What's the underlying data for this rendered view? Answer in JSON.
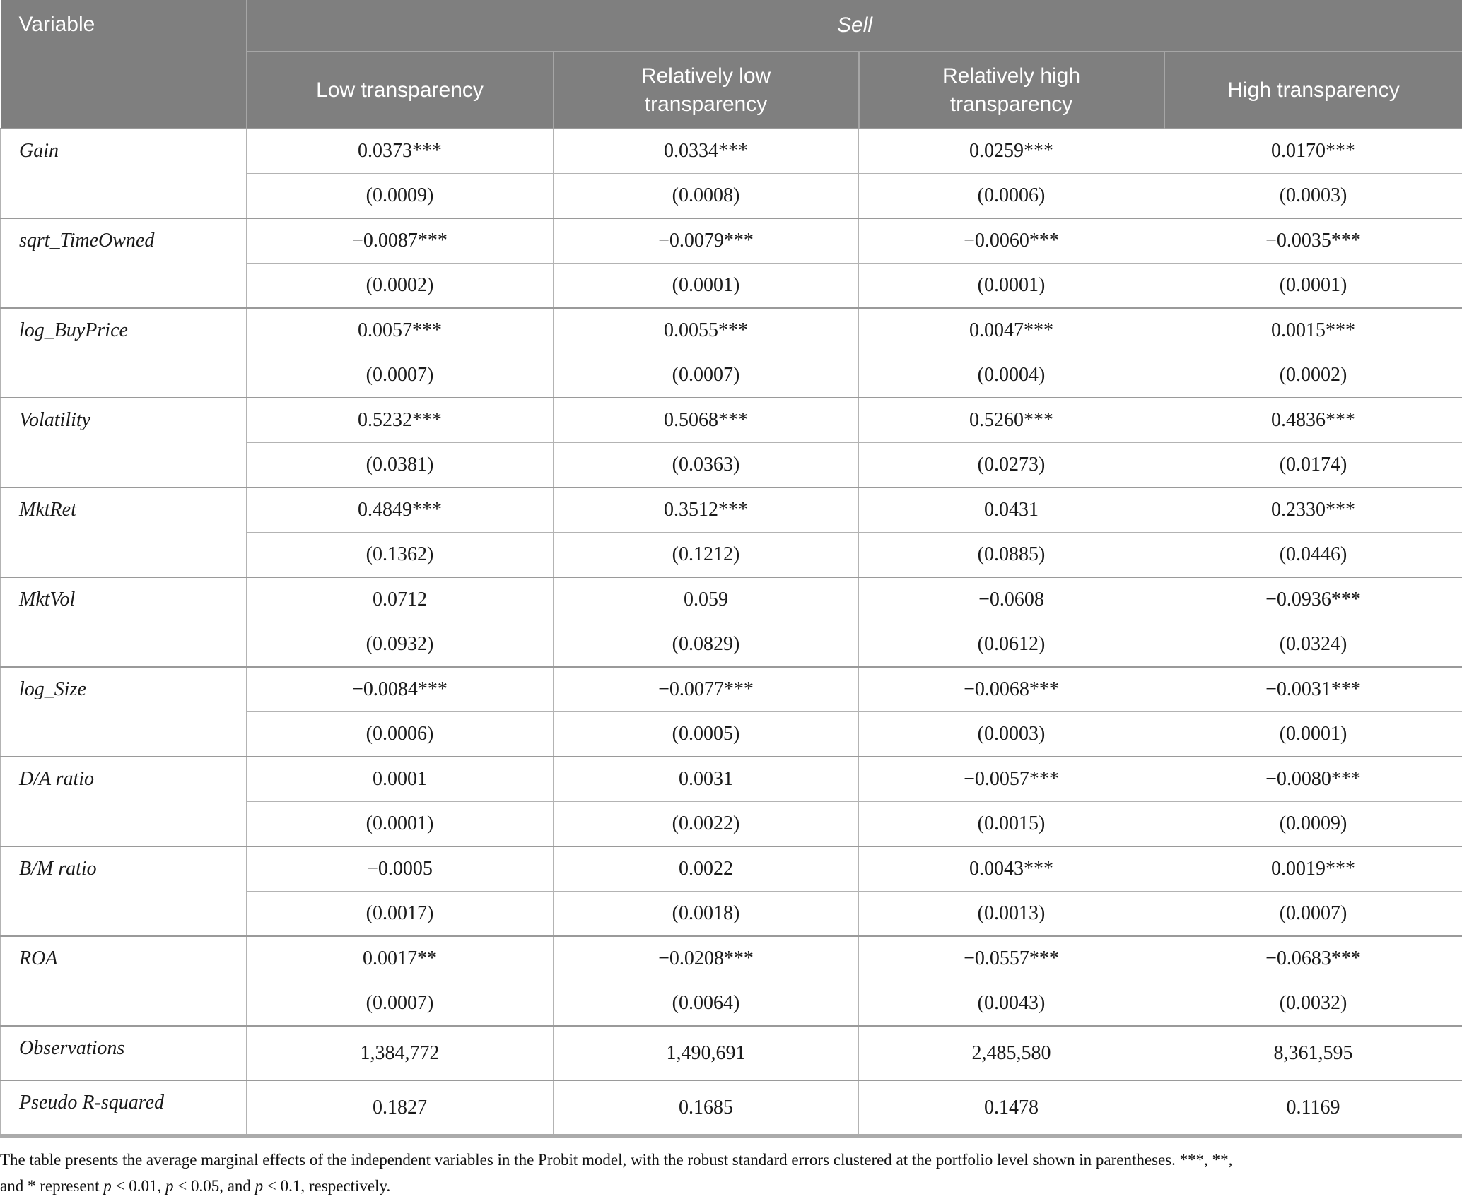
{
  "table": {
    "corner_header": "Variable",
    "group_header": "Sell",
    "column_headers": [
      "Low transparency",
      "Relatively low transparency",
      "Relatively high transparency",
      "High transparency"
    ],
    "variables": [
      {
        "name": "Gain",
        "coefficients": [
          "0.0373***",
          "0.0334***",
          "0.0259***",
          "0.0170***"
        ],
        "std_errors": [
          "(0.0009)",
          "(0.0008)",
          "(0.0006)",
          "(0.0003)"
        ]
      },
      {
        "name": "sqrt_TimeOwned",
        "coefficients": [
          "−0.0087***",
          "−0.0079***",
          "−0.0060***",
          "−0.0035***"
        ],
        "std_errors": [
          "(0.0002)",
          "(0.0001)",
          "(0.0001)",
          "(0.0001)"
        ]
      },
      {
        "name": "log_BuyPrice",
        "coefficients": [
          "0.0057***",
          "0.0055***",
          "0.0047***",
          "0.0015***"
        ],
        "std_errors": [
          "(0.0007)",
          "(0.0007)",
          "(0.0004)",
          "(0.0002)"
        ]
      },
      {
        "name": "Volatility",
        "coefficients": [
          "0.5232***",
          "0.5068***",
          "0.5260***",
          "0.4836***"
        ],
        "std_errors": [
          "(0.0381)",
          "(0.0363)",
          "(0.0273)",
          "(0.0174)"
        ]
      },
      {
        "name": "MktRet",
        "coefficients": [
          "0.4849***",
          "0.3512***",
          "0.0431",
          "0.2330***"
        ],
        "std_errors": [
          "(0.1362)",
          "(0.1212)",
          "(0.0885)",
          "(0.0446)"
        ]
      },
      {
        "name": "MktVol",
        "coefficients": [
          "0.0712",
          "0.059",
          "−0.0608",
          "−0.0936***"
        ],
        "std_errors": [
          "(0.0932)",
          "(0.0829)",
          "(0.0612)",
          "(0.0324)"
        ]
      },
      {
        "name": "log_Size",
        "coefficients": [
          "−0.0084***",
          "−0.0077***",
          "−0.0068***",
          "−0.0031***"
        ],
        "std_errors": [
          "(0.0006)",
          "(0.0005)",
          "(0.0003)",
          "(0.0001)"
        ]
      },
      {
        "name": "D/A ratio",
        "coefficients": [
          "0.0001",
          "0.0031",
          "−0.0057***",
          "−0.0080***"
        ],
        "std_errors": [
          "(0.0001)",
          "(0.0022)",
          "(0.0015)",
          "(0.0009)"
        ]
      },
      {
        "name": "B/M ratio",
        "coefficients": [
          "−0.0005",
          "0.0022",
          "0.0043***",
          "0.0019***"
        ],
        "std_errors": [
          "(0.0017)",
          "(0.0018)",
          "(0.0013)",
          "(0.0007)"
        ]
      },
      {
        "name": "ROA",
        "coefficients": [
          "0.0017**",
          "−0.0208***",
          "−0.0557***",
          "−0.0683***"
        ],
        "std_errors": [
          "(0.0007)",
          "(0.0064)",
          "(0.0043)",
          "(0.0032)"
        ]
      }
    ],
    "summary_rows": [
      {
        "label": "Observations",
        "values": [
          "1,384,772",
          "1,490,691",
          "2,485,580",
          "8,361,595"
        ]
      },
      {
        "label": "Pseudo R-squared",
        "values": [
          "0.1827",
          "0.1685",
          "0.1478",
          "0.1169"
        ]
      }
    ]
  },
  "footnote": {
    "lines": [
      [
        {
          "text": "The table presents the average marginal effects of the independent variables in the Probit model, with the robust standard errors clustered at the portfolio level shown in parentheses. ***, **,",
          "italic": false
        }
      ],
      [
        {
          "text": "and * represent ",
          "italic": false
        },
        {
          "text": "p",
          "italic": true
        },
        {
          "text": " < 0.01, ",
          "italic": false
        },
        {
          "text": "p",
          "italic": true
        },
        {
          "text": " < 0.05, and ",
          "italic": false
        },
        {
          "text": "p",
          "italic": true
        },
        {
          "text": " < 0.1, respectively.",
          "italic": false
        }
      ]
    ]
  },
  "colors": {
    "header_background": "#7f7f7f",
    "header_text": "#ffffff",
    "body_text": "#1a1a1a",
    "border_light": "#b3b3b3",
    "border_medium": "#a6a6a6",
    "border_group": "#9a9a9a"
  }
}
